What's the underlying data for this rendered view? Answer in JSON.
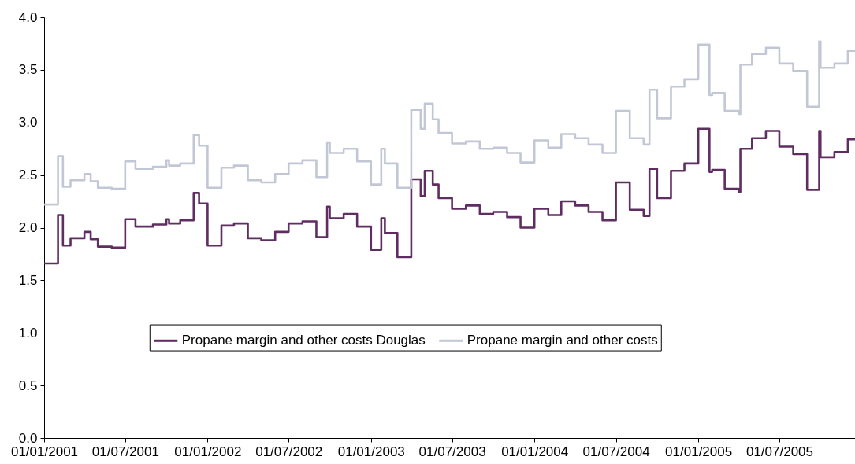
{
  "chart_data": {
    "type": "step",
    "x": [
      "2001-01-01",
      "2001-02-01",
      "2001-02-12",
      "2001-03-01",
      "2001-04-01",
      "2001-04-15",
      "2001-05-01",
      "2001-06-01",
      "2001-07-01",
      "2001-07-24",
      "2001-09-01",
      "2001-10-01",
      "2001-10-07",
      "2001-11-01",
      "2001-12-01",
      "2001-12-13",
      "2002-01-01",
      "2002-02-01",
      "2002-03-01",
      "2002-04-01",
      "2002-05-01",
      "2002-06-01",
      "2002-07-01",
      "2002-08-01",
      "2002-09-01",
      "2002-09-25",
      "2002-10-01",
      "2002-11-01",
      "2002-12-01",
      "2003-01-01",
      "2003-01-24",
      "2003-02-01",
      "2003-03-01",
      "2003-04-01",
      "2003-04-22",
      "2003-05-01",
      "2003-05-19",
      "2003-06-01",
      "2003-07-01",
      "2003-08-01",
      "2003-09-01",
      "2003-10-01",
      "2003-11-01",
      "2003-12-01",
      "2004-01-01",
      "2004-02-01",
      "2004-03-01",
      "2004-04-01",
      "2004-05-01",
      "2004-06-01",
      "2004-07-01",
      "2004-08-01",
      "2004-09-01",
      "2004-09-14",
      "2004-10-01",
      "2004-11-01",
      "2004-12-01",
      "2005-01-01",
      "2005-01-26",
      "2005-02-01",
      "2005-03-01",
      "2005-04-01",
      "2005-04-05",
      "2005-05-01",
      "2005-06-01",
      "2005-07-01",
      "2005-08-01",
      "2005-09-01",
      "2005-09-28",
      "2005-10-01",
      "2005-11-01",
      "2005-12-01",
      "2005-12-17"
    ],
    "series": [
      {
        "name": "Propane margin and other costs Douglas",
        "color": "#5f2d62",
        "values": [
          1.66,
          2.12,
          1.83,
          1.9,
          1.96,
          1.89,
          1.82,
          1.81,
          2.08,
          2.01,
          2.03,
          2.08,
          2.04,
          2.07,
          2.33,
          2.23,
          1.83,
          2.02,
          2.04,
          1.9,
          1.88,
          1.96,
          2.04,
          2.06,
          1.91,
          2.2,
          2.09,
          2.13,
          2.01,
          1.79,
          2.09,
          1.95,
          1.72,
          2.46,
          2.3,
          2.54,
          2.41,
          2.28,
          2.18,
          2.21,
          2.13,
          2.15,
          2.1,
          2.0,
          2.18,
          2.12,
          2.25,
          2.21,
          2.15,
          2.07,
          2.43,
          2.17,
          2.11,
          2.56,
          2.28,
          2.54,
          2.61,
          2.94,
          2.53,
          2.55,
          2.37,
          2.34,
          2.75,
          2.85,
          2.92,
          2.77,
          2.7,
          2.36,
          2.92,
          2.67,
          2.72,
          2.84,
          2.84
        ]
      },
      {
        "name": "Propane margin and other costs",
        "color": "#c2c7d5",
        "values": [
          2.22,
          2.68,
          2.39,
          2.45,
          2.51,
          2.44,
          2.38,
          2.37,
          2.63,
          2.56,
          2.58,
          2.64,
          2.59,
          2.61,
          2.88,
          2.78,
          2.38,
          2.57,
          2.59,
          2.45,
          2.43,
          2.51,
          2.61,
          2.64,
          2.48,
          2.81,
          2.71,
          2.75,
          2.63,
          2.41,
          2.75,
          2.61,
          2.38,
          3.12,
          2.94,
          3.18,
          3.03,
          2.9,
          2.8,
          2.82,
          2.75,
          2.76,
          2.71,
          2.62,
          2.83,
          2.76,
          2.89,
          2.85,
          2.79,
          2.71,
          3.11,
          2.85,
          2.79,
          3.31,
          3.04,
          3.34,
          3.41,
          3.74,
          3.26,
          3.28,
          3.11,
          3.08,
          3.55,
          3.65,
          3.71,
          3.56,
          3.49,
          3.15,
          3.77,
          3.52,
          3.56,
          3.68,
          3.68
        ]
      }
    ],
    "xlim": [
      "2001-01-01",
      "2005-12-17"
    ],
    "xticks": [
      {
        "value": "2001-01-01",
        "label": "01/01/2001"
      },
      {
        "value": "2001-07-01",
        "label": "01/07/2001"
      },
      {
        "value": "2002-01-01",
        "label": "01/01/2002"
      },
      {
        "value": "2002-07-01",
        "label": "01/07/2002"
      },
      {
        "value": "2003-01-01",
        "label": "01/01/2003"
      },
      {
        "value": "2003-07-01",
        "label": "01/07/2003"
      },
      {
        "value": "2004-01-01",
        "label": "01/01/2004"
      },
      {
        "value": "2004-07-01",
        "label": "01/07/2004"
      },
      {
        "value": "2005-01-01",
        "label": "01/01/2005"
      },
      {
        "value": "2005-07-01",
        "label": "01/07/2005"
      }
    ],
    "ylim": [
      0,
      4
    ],
    "yticks": [
      {
        "value": 0,
        "label": "0.0"
      },
      {
        "value": 0.5,
        "label": "0.5"
      },
      {
        "value": 1,
        "label": "1.0"
      },
      {
        "value": 1.5,
        "label": "1.5"
      },
      {
        "value": 2,
        "label": "2.0"
      },
      {
        "value": 2.5,
        "label": "2.5"
      },
      {
        "value": 3,
        "label": "3.0"
      },
      {
        "value": 3.5,
        "label": "3.5"
      },
      {
        "value": 4,
        "label": "4.0"
      }
    ],
    "grid": false,
    "legend": "bottom"
  }
}
